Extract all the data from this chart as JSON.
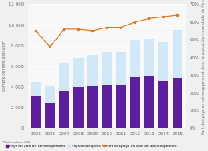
{
  "years": [
    "2005",
    "2006",
    "2007",
    "2008",
    "2009",
    "2010",
    "2011",
    "2012",
    "2013",
    "2014",
    "2015"
  ],
  "developing": [
    3100,
    2500,
    3650,
    4000,
    4050,
    4150,
    4250,
    4950,
    5100,
    4550,
    4850
  ],
  "developed": [
    1350,
    1600,
    2650,
    2800,
    3100,
    3200,
    3150,
    3550,
    3600,
    3850,
    4650
  ],
  "share_line": [
    55,
    46,
    56,
    56,
    55,
    57,
    57,
    60,
    62,
    63,
    64
  ],
  "bar_color_developing": "#5b1fa0",
  "bar_color_developed": "#d0e8f8",
  "line_color": "#e07820",
  "ylim_left": [
    0,
    12000
  ],
  "ylim_right": [
    0,
    70
  ],
  "yticks_left": [
    0,
    2000,
    4000,
    6000,
    8000,
    10000,
    12000
  ],
  "yticks_right": [
    0,
    10,
    20,
    30,
    40,
    50,
    60,
    70
  ],
  "ylabel_left": "Nombre de films produits*",
  "ylabel_right": "Part des pays en développement dans la production mondiale de films",
  "source_text": "*Estimation: UIS",
  "legend_developing": "Pays en voie de développement",
  "legend_developed": "Pays développés",
  "legend_line": "Part des pays en voie de développement",
  "bg_color": "#f0f0f0",
  "plot_bg_color": "#f8f8f8",
  "grid_color": "#ffffff",
  "tick_fontsize": 4.0,
  "label_fontsize": 3.5,
  "legend_fontsize": 3.2
}
